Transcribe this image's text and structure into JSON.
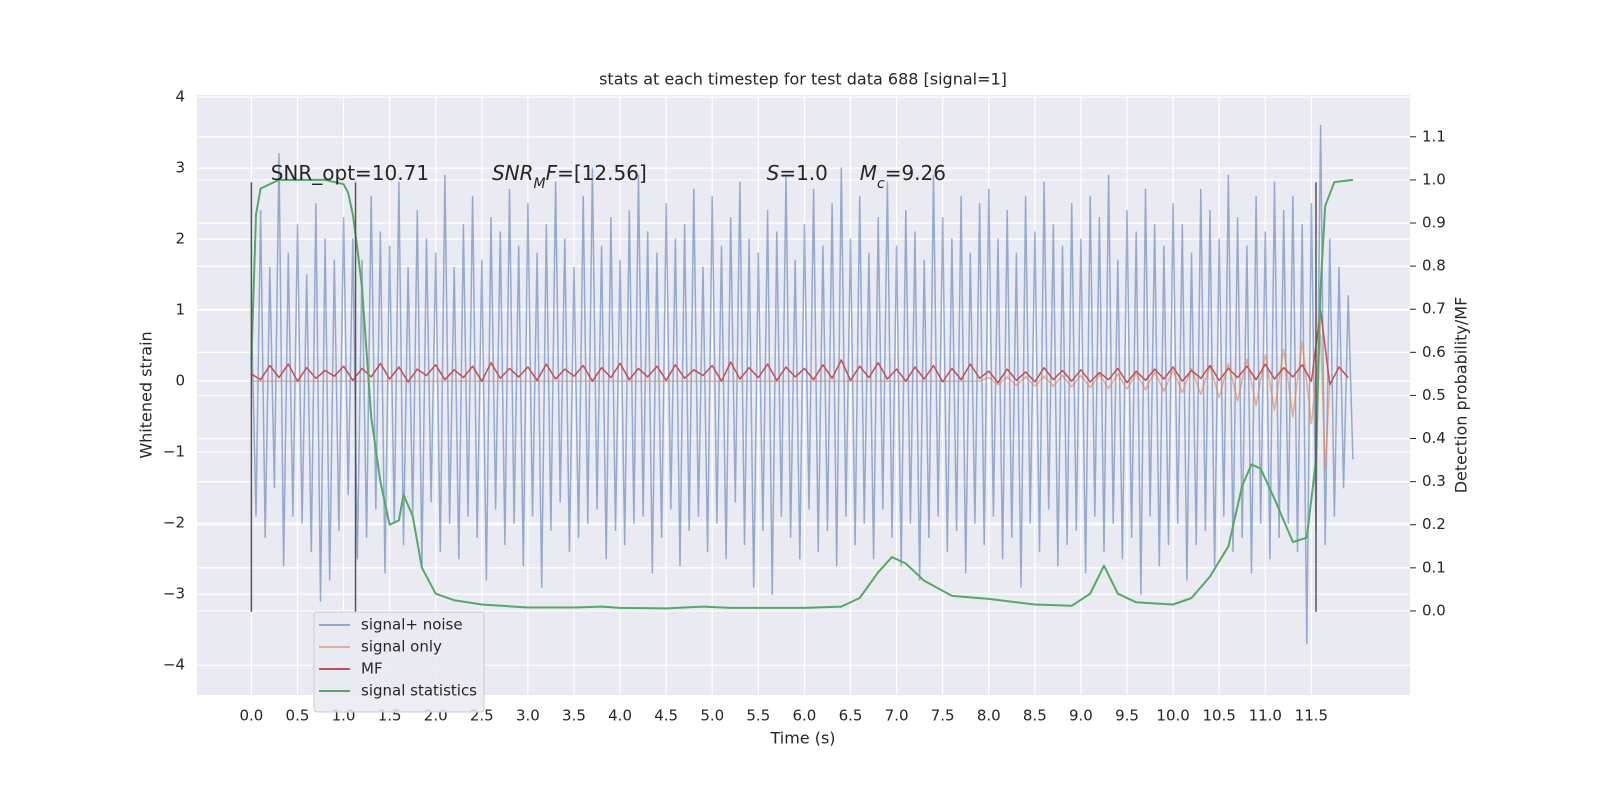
{
  "chart_data": {
    "type": "line",
    "title": "stats at each timestep for test data 688 [signal=1]",
    "xlabel": "Time (s)",
    "ylabel": "Whitened strain",
    "y2label": "Detection probability/MF",
    "xlim": [
      -0.59,
      12.57
    ],
    "ylim": [
      -4.42,
      4.03
    ],
    "y2lim": [
      -0.195,
      1.197
    ],
    "grid": true,
    "background": "#eaeaf2",
    "legend": "lower left",
    "xticks": [
      {
        "value": 0,
        "label": "0.0"
      },
      {
        "value": 0.5,
        "label": "0.5"
      },
      {
        "value": 1,
        "label": "1.0"
      },
      {
        "value": 1.5,
        "label": "1.5"
      },
      {
        "value": 2,
        "label": "2.0"
      },
      {
        "value": 2.5,
        "label": "2.5"
      },
      {
        "value": 3,
        "label": "3.0"
      },
      {
        "value": 3.5,
        "label": "3.5"
      },
      {
        "value": 4,
        "label": "4.0"
      },
      {
        "value": 4.5,
        "label": "4.5"
      },
      {
        "value": 5,
        "label": "5.0"
      },
      {
        "value": 5.5,
        "label": "5.5"
      },
      {
        "value": 6,
        "label": "6.0"
      },
      {
        "value": 6.5,
        "label": "6.5"
      },
      {
        "value": 7,
        "label": "7.0"
      },
      {
        "value": 7.5,
        "label": "7.5"
      },
      {
        "value": 8,
        "label": "8.0"
      },
      {
        "value": 8.5,
        "label": "8.5"
      },
      {
        "value": 9,
        "label": "9.0"
      },
      {
        "value": 9.5,
        "label": "9.5"
      },
      {
        "value": 10,
        "label": "10.0"
      },
      {
        "value": 10.5,
        "label": "10.5"
      },
      {
        "value": 11,
        "label": "11.0"
      },
      {
        "value": 11.5,
        "label": "11.5"
      }
    ],
    "yticks": [
      {
        "value": -4,
        "label": "−4"
      },
      {
        "value": -3,
        "label": "−3"
      },
      {
        "value": -2,
        "label": "−2"
      },
      {
        "value": -1,
        "label": "−1"
      },
      0,
      1,
      2,
      3,
      4
    ],
    "y2ticks": [
      {
        "value": 0,
        "label": "0.0"
      },
      {
        "value": 0.1,
        "label": "0.1"
      },
      {
        "value": 0.2,
        "label": "0.2"
      },
      {
        "value": 0.3,
        "label": "0.3"
      },
      {
        "value": 0.4,
        "label": "0.4"
      },
      {
        "value": 0.5,
        "label": "0.5"
      },
      {
        "value": 0.6,
        "label": "0.6"
      },
      {
        "value": 0.7,
        "label": "0.7"
      },
      {
        "value": 0.8,
        "label": "0.8"
      },
      {
        "value": 0.9,
        "label": "0.9"
      },
      {
        "value": 1,
        "label": "1.0"
      },
      {
        "value": 1.1,
        "label": "1.1"
      }
    ],
    "vlines": {
      "x": [
        0,
        1.13,
        11.55
      ],
      "ymin": -3.25,
      "ymax": 2.8,
      "color": "#555555"
    },
    "annotations": [
      {
        "x": 0.21,
        "y": 2.83,
        "parts": [
          {
            "text": "SNR_opt=10.71"
          }
        ]
      },
      {
        "x": 2.61,
        "y": 2.83,
        "parts": [
          {
            "text": "SNR",
            "italic": true
          },
          {
            "text": "M",
            "italic": true,
            "sub": true
          },
          {
            "text": "F",
            "italic": true
          },
          {
            "text": "=[12.56]"
          }
        ]
      },
      {
        "x": 5.59,
        "y": 2.83,
        "parts": [
          {
            "text": "S",
            "italic": true
          },
          {
            "text": "=1.0"
          }
        ]
      },
      {
        "x": 6.6,
        "y": 2.83,
        "parts": [
          {
            "text": "M",
            "italic": true
          },
          {
            "text": "c",
            "italic": true,
            "sub": true
          },
          {
            "text": "=9.26"
          }
        ]
      }
    ],
    "series": [
      {
        "name": "signal+ noise",
        "color": "#4c72b0",
        "alpha": 0.55,
        "x": [
          0,
          0.05,
          0.1,
          0.15,
          0.2,
          0.25,
          0.3,
          0.35,
          0.4,
          0.45,
          0.5,
          0.55,
          0.6,
          0.65,
          0.7,
          0.75,
          0.8,
          0.85,
          0.9,
          0.95,
          1,
          1.05,
          1.1,
          1.15,
          1.2,
          1.25,
          1.3,
          1.35,
          1.4,
          1.45,
          1.5,
          1.55,
          1.6,
          1.65,
          1.7,
          1.75,
          1.8,
          1.85,
          1.9,
          1.95,
          2,
          2.05,
          2.1,
          2.15,
          2.2,
          2.25,
          2.3,
          2.35,
          2.4,
          2.45,
          2.5,
          2.55,
          2.6,
          2.65,
          2.7,
          2.75,
          2.8,
          2.85,
          2.9,
          2.95,
          3,
          3.05,
          3.1,
          3.15,
          3.2,
          3.25,
          3.3,
          3.35,
          3.4,
          3.45,
          3.5,
          3.55,
          3.6,
          3.65,
          3.7,
          3.75,
          3.8,
          3.85,
          3.9,
          3.95,
          4,
          4.05,
          4.1,
          4.15,
          4.2,
          4.25,
          4.3,
          4.35,
          4.4,
          4.45,
          4.5,
          4.55,
          4.6,
          4.65,
          4.7,
          4.75,
          4.8,
          4.85,
          4.9,
          4.95,
          5,
          5.05,
          5.1,
          5.15,
          5.2,
          5.25,
          5.3,
          5.35,
          5.4,
          5.45,
          5.5,
          5.55,
          5.6,
          5.65,
          5.7,
          5.75,
          5.8,
          5.85,
          5.9,
          5.95,
          6,
          6.05,
          6.1,
          6.15,
          6.2,
          6.25,
          6.3,
          6.35,
          6.4,
          6.45,
          6.5,
          6.55,
          6.6,
          6.65,
          6.7,
          6.75,
          6.8,
          6.85,
          6.9,
          6.95,
          7,
          7.05,
          7.1,
          7.15,
          7.2,
          7.25,
          7.3,
          7.35,
          7.4,
          7.45,
          7.5,
          7.55,
          7.6,
          7.65,
          7.7,
          7.75,
          7.8,
          7.85,
          7.9,
          7.95,
          8,
          8.05,
          8.1,
          8.15,
          8.2,
          8.25,
          8.3,
          8.35,
          8.4,
          8.45,
          8.5,
          8.55,
          8.6,
          8.65,
          8.7,
          8.75,
          8.8,
          8.85,
          8.9,
          8.95,
          9,
          9.05,
          9.1,
          9.15,
          9.2,
          9.25,
          9.3,
          9.35,
          9.4,
          9.45,
          9.5,
          9.55,
          9.6,
          9.65,
          9.7,
          9.75,
          9.8,
          9.85,
          9.9,
          9.95,
          10,
          10.05,
          10.1,
          10.15,
          10.2,
          10.25,
          10.3,
          10.35,
          10.4,
          10.45,
          10.5,
          10.55,
          10.6,
          10.65,
          10.7,
          10.75,
          10.8,
          10.85,
          10.9,
          10.95,
          11,
          11.05,
          11.1,
          11.15,
          11.2,
          11.25,
          11.3,
          11.35,
          11.4,
          11.45,
          11.5,
          11.55,
          11.6,
          11.65,
          11.7,
          11.75,
          11.8,
          11.85,
          11.9,
          11.95
        ],
        "values": [
          1.0,
          -1.9,
          2.4,
          -2.2,
          1.6,
          -1.5,
          3.2,
          -2.6,
          1.8,
          -1.9,
          2.2,
          -2.0,
          1.5,
          -2.4,
          2.5,
          -3.1,
          2.0,
          -2.8,
          1.7,
          -2.1,
          2.3,
          -1.6,
          2.0,
          -2.5,
          1.7,
          -2.2,
          2.6,
          -1.8,
          2.1,
          -2.7,
          1.9,
          -2.0,
          2.8,
          -2.3,
          1.6,
          -1.9,
          2.4,
          -2.6,
          2.0,
          -1.7,
          1.8,
          -2.4,
          2.9,
          -2.0,
          1.6,
          -2.5,
          2.2,
          -1.9,
          2.6,
          -2.2,
          1.7,
          -2.8,
          2.3,
          -1.8,
          2.1,
          -2.3,
          2.7,
          -2.0,
          1.9,
          -2.6,
          2.5,
          -1.9,
          1.8,
          -2.9,
          2.2,
          -2.1,
          2.8,
          -1.7,
          2.0,
          -2.4,
          1.6,
          -2.2,
          2.6,
          -2.0,
          3.0,
          -1.8,
          1.9,
          -2.5,
          2.3,
          -2.1,
          1.7,
          -2.3,
          2.4,
          -2.0,
          2.9,
          -1.9,
          2.1,
          -2.7,
          1.8,
          -2.2,
          2.5,
          -1.8,
          2.0,
          -2.6,
          2.2,
          -2.1,
          2.7,
          -1.9,
          1.6,
          -2.4,
          2.6,
          -2.0,
          1.9,
          -2.5,
          2.3,
          -1.7,
          2.8,
          -2.3,
          2.0,
          -2.9,
          1.8,
          -2.1,
          2.4,
          -3.0,
          2.1,
          -1.9,
          2.9,
          -2.2,
          1.7,
          -2.5,
          2.2,
          -1.8,
          2.7,
          -2.4,
          1.9,
          -2.1,
          2.5,
          -2.6,
          3.0,
          -1.9,
          2.0,
          -2.3,
          2.6,
          -2.0,
          1.8,
          -2.5,
          2.3,
          -1.8,
          2.8,
          -2.2,
          1.9,
          -2.6,
          2.4,
          -2.0,
          2.1,
          -2.8,
          1.7,
          -2.2,
          2.9,
          -1.9,
          2.3,
          -2.4,
          2.0,
          -2.1,
          2.6,
          -2.7,
          1.8,
          -2.0,
          2.5,
          -2.3,
          2.7,
          -1.9,
          2.0,
          -2.5,
          2.4,
          -2.2,
          1.8,
          -2.9,
          2.6,
          -2.0,
          2.1,
          -2.4,
          2.8,
          -1.8,
          2.2,
          -2.6,
          1.9,
          -2.3,
          2.5,
          -2.1,
          2.0,
          -2.7,
          2.6,
          -1.9,
          2.3,
          -2.4,
          2.9,
          -2.0,
          1.7,
          -2.5,
          2.4,
          -2.2,
          2.1,
          -3.0,
          2.7,
          -1.9,
          2.2,
          -2.6,
          1.9,
          -2.3,
          2.5,
          -2.0,
          2.2,
          -2.8,
          1.8,
          -2.3,
          2.7,
          -2.1,
          2.4,
          -2.6,
          2.0,
          -1.9,
          2.9,
          -2.4,
          2.3,
          -2.2,
          1.9,
          -2.7,
          2.6,
          -2.0,
          2.1,
          -2.5,
          2.8,
          -2.2,
          2.4,
          -2.0,
          2.6,
          -2.4,
          2.2,
          -3.7,
          2.5,
          -2.1,
          3.6,
          -2.3,
          2.0,
          -1.9,
          1.6,
          -1.5,
          1.2,
          -1.1
        ]
      },
      {
        "name": "signal only",
        "color": "#dd8452",
        "alpha": 0.6,
        "x": [
          0,
          7.9,
          8.0,
          8.1,
          8.2,
          8.3,
          8.4,
          8.5,
          8.6,
          8.7,
          8.8,
          8.9,
          9.0,
          9.1,
          9.2,
          9.3,
          9.4,
          9.5,
          9.6,
          9.7,
          9.8,
          9.9,
          10.0,
          10.1,
          10.2,
          10.3,
          10.4,
          10.5,
          10.6,
          10.7,
          10.8,
          10.9,
          11.0,
          11.1,
          11.2,
          11.3,
          11.4,
          11.5,
          11.6,
          11.65,
          11.7
        ],
        "values": [
          0,
          0,
          0.05,
          -0.05,
          0.06,
          -0.06,
          0.06,
          -0.07,
          0.07,
          -0.07,
          0.08,
          -0.08,
          0.08,
          -0.09,
          0.09,
          -0.1,
          0.1,
          -0.11,
          0.11,
          -0.12,
          0.13,
          -0.14,
          0.15,
          -0.16,
          0.18,
          -0.19,
          0.21,
          -0.23,
          0.25,
          -0.28,
          0.31,
          -0.34,
          0.37,
          -0.41,
          0.45,
          -0.5,
          0.55,
          -0.6,
          0.65,
          -1.25,
          0
        ]
      },
      {
        "name": "MF",
        "color": "#c44e52",
        "alpha": 1,
        "x": [
          0,
          0.1,
          0.2,
          0.3,
          0.4,
          0.5,
          0.6,
          0.7,
          0.8,
          0.9,
          1,
          1.1,
          1.2,
          1.3,
          1.4,
          1.5,
          1.6,
          1.7,
          1.8,
          1.9,
          2,
          2.1,
          2.2,
          2.3,
          2.4,
          2.5,
          2.6,
          2.7,
          2.8,
          2.9,
          3,
          3.1,
          3.2,
          3.3,
          3.4,
          3.5,
          3.6,
          3.7,
          3.8,
          3.9,
          4,
          4.1,
          4.2,
          4.3,
          4.4,
          4.5,
          4.6,
          4.7,
          4.8,
          4.9,
          5,
          5.1,
          5.2,
          5.3,
          5.4,
          5.5,
          5.6,
          5.7,
          5.8,
          5.9,
          6,
          6.1,
          6.2,
          6.3,
          6.4,
          6.5,
          6.6,
          6.7,
          6.8,
          6.9,
          7,
          7.1,
          7.2,
          7.3,
          7.4,
          7.5,
          7.6,
          7.7,
          7.8,
          7.9,
          8,
          8.1,
          8.2,
          8.3,
          8.4,
          8.5,
          8.6,
          8.7,
          8.8,
          8.9,
          9,
          9.1,
          9.2,
          9.3,
          9.4,
          9.5,
          9.6,
          9.7,
          9.8,
          9.9,
          10,
          10.1,
          10.2,
          10.3,
          10.4,
          10.5,
          10.6,
          10.7,
          10.8,
          10.9,
          11,
          11.1,
          11.2,
          11.3,
          11.4,
          11.5,
          11.6,
          11.7,
          11.8,
          11.9
        ],
        "values": [
          0.1,
          0.02,
          0.22,
          0.05,
          0.24,
          0.0,
          0.19,
          0.04,
          0.15,
          0.07,
          0.21,
          0.01,
          0.18,
          0.06,
          0.25,
          0.03,
          0.2,
          -0.01,
          0.17,
          0.08,
          0.23,
          0.02,
          0.16,
          0.05,
          0.21,
          0.0,
          0.26,
          0.04,
          0.18,
          0.06,
          0.2,
          0.01,
          0.24,
          0.03,
          0.17,
          0.07,
          0.22,
          0.0,
          0.19,
          0.05,
          0.25,
          0.02,
          0.18,
          0.06,
          0.21,
          0.01,
          0.23,
          0.04,
          0.16,
          0.08,
          0.22,
          0.0,
          0.27,
          0.03,
          0.19,
          0.05,
          0.24,
          0.01,
          0.2,
          0.06,
          0.18,
          0.02,
          0.23,
          0.04,
          0.3,
          0.01,
          0.21,
          0.05,
          0.26,
          0.03,
          0.17,
          0.0,
          0.2,
          0.03,
          0.22,
          -0.01,
          0.18,
          0.02,
          0.24,
          0.04,
          0.14,
          -0.02,
          0.17,
          0.01,
          0.13,
          -0.01,
          0.19,
          0.02,
          0.15,
          0.0,
          0.16,
          -0.01,
          0.12,
          0.02,
          0.18,
          -0.02,
          0.14,
          0.01,
          0.17,
          0.03,
          0.2,
          0.0,
          0.15,
          0.04,
          0.22,
          0.01,
          0.18,
          0.05,
          0.21,
          0.02,
          0.24,
          0.03,
          0.19,
          0.06,
          0.23,
          0.0,
          1.0,
          -0.05,
          0.2,
          0.05
        ]
      },
      {
        "name": "signal statistics",
        "color": "#55a868",
        "alpha": 1,
        "axis": "y2",
        "x": [
          0,
          0.05,
          0.1,
          0.2,
          0.3,
          0.5,
          0.8,
          1.0,
          1.05,
          1.1,
          1.15,
          1.2,
          1.25,
          1.3,
          1.4,
          1.5,
          1.6,
          1.65,
          1.75,
          1.85,
          2.0,
          2.2,
          2.5,
          3.0,
          3.5,
          3.8,
          4.0,
          4.5,
          4.9,
          5.2,
          6.0,
          6.4,
          6.6,
          6.8,
          6.95,
          7.1,
          7.3,
          7.6,
          8.0,
          8.5,
          8.9,
          9.1,
          9.25,
          9.4,
          9.6,
          10.0,
          10.2,
          10.4,
          10.6,
          10.75,
          10.85,
          10.95,
          11.1,
          11.3,
          11.45,
          11.55,
          11.6,
          11.65,
          11.75,
          11.95
        ],
        "values": [
          0.58,
          0.92,
          0.98,
          0.99,
          1.0,
          1.0,
          1.0,
          0.99,
          0.97,
          0.92,
          0.84,
          0.75,
          0.6,
          0.45,
          0.3,
          0.2,
          0.21,
          0.27,
          0.22,
          0.1,
          0.04,
          0.025,
          0.015,
          0.008,
          0.008,
          0.01,
          0.007,
          0.006,
          0.01,
          0.007,
          0.007,
          0.01,
          0.03,
          0.09,
          0.125,
          0.11,
          0.07,
          0.035,
          0.028,
          0.015,
          0.012,
          0.04,
          0.105,
          0.04,
          0.02,
          0.015,
          0.03,
          0.08,
          0.15,
          0.29,
          0.34,
          0.33,
          0.26,
          0.16,
          0.17,
          0.35,
          0.75,
          0.94,
          0.995,
          1.0
        ]
      }
    ]
  }
}
